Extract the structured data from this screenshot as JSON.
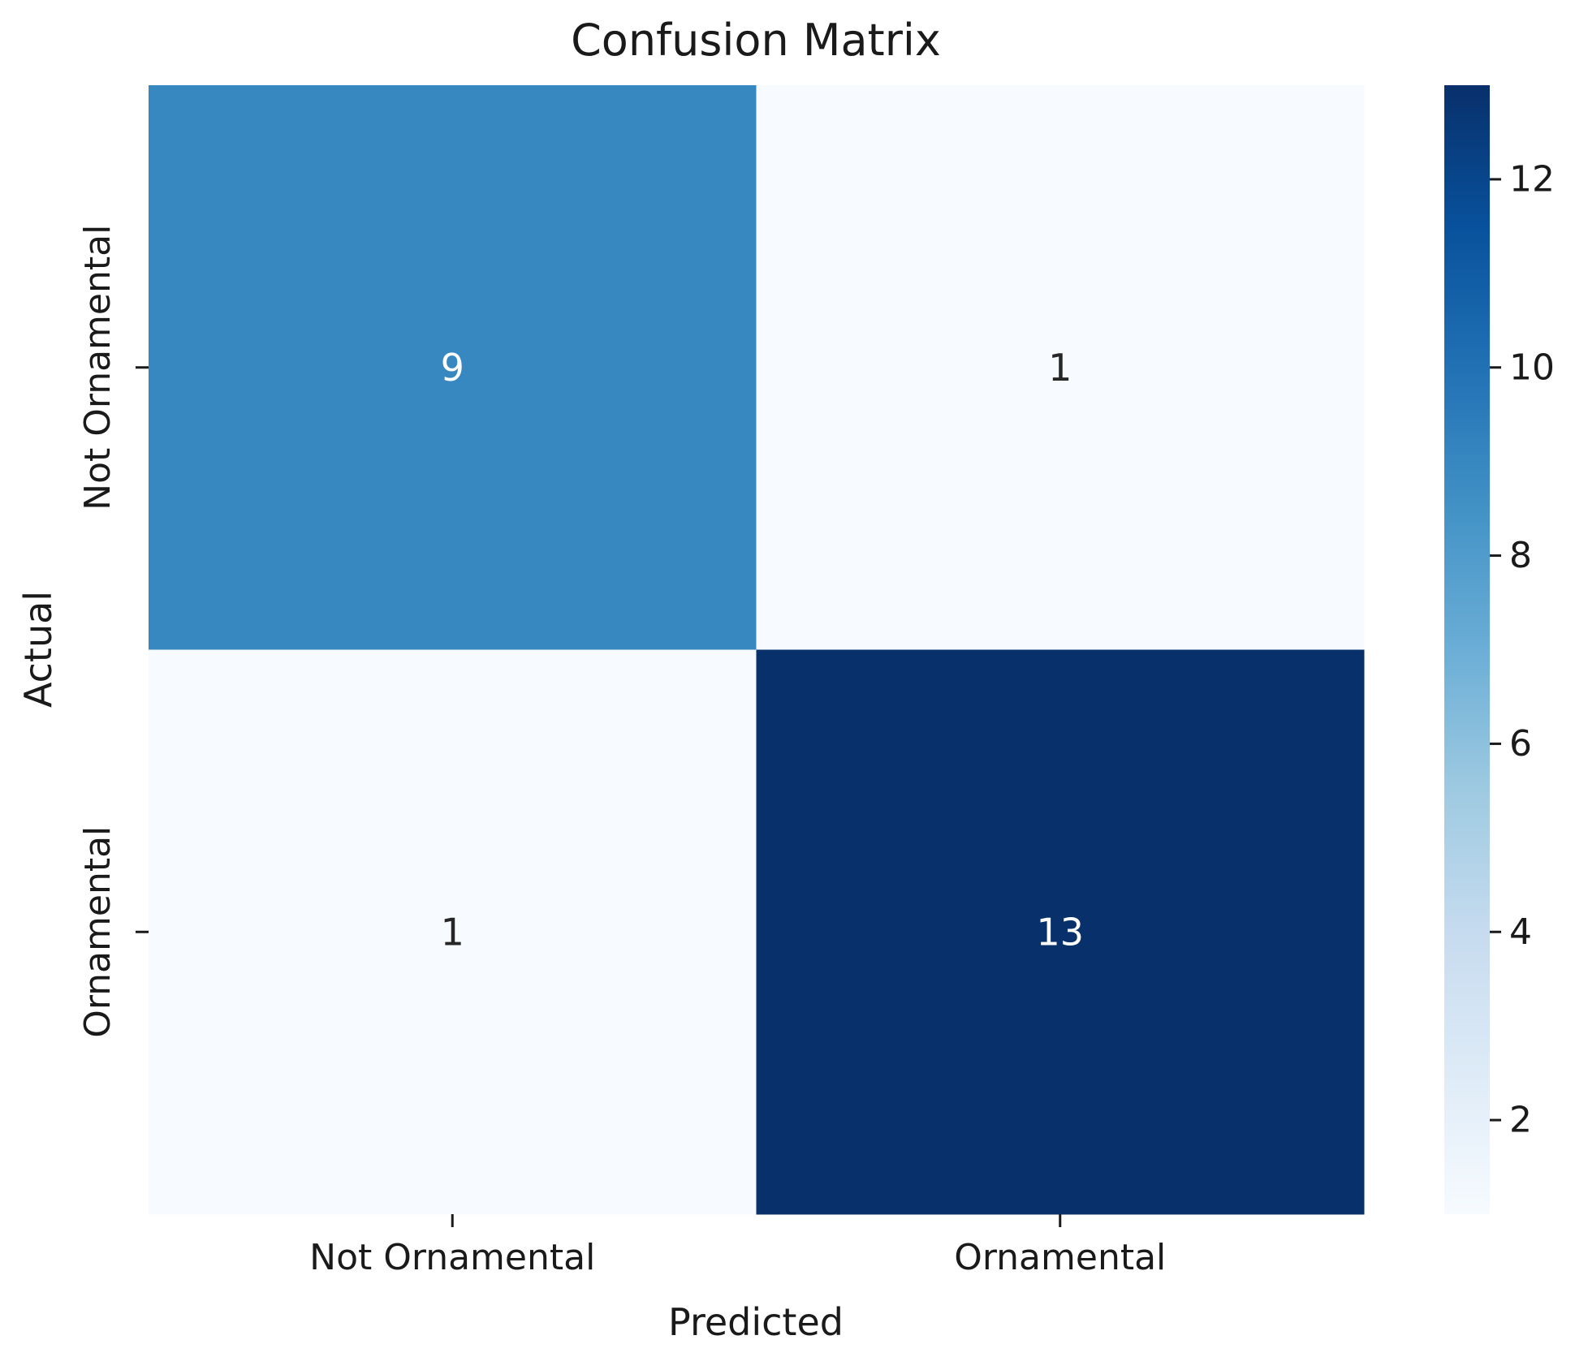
{
  "chart_data": {
    "type": "heatmap",
    "title": "Confusion Matrix",
    "xlabel": "Predicted",
    "ylabel": "Actual",
    "x_categories": [
      "Not Ornamental",
      "Ornamental"
    ],
    "y_categories": [
      "Not Ornamental",
      "Ornamental"
    ],
    "values": [
      [
        9,
        1
      ],
      [
        1,
        13
      ]
    ],
    "colormap": "Blues",
    "color_range": [
      1,
      13
    ],
    "colorbar_ticks": [
      2,
      4,
      6,
      8,
      10,
      12
    ],
    "legend_placement": "right",
    "grid": false
  }
}
